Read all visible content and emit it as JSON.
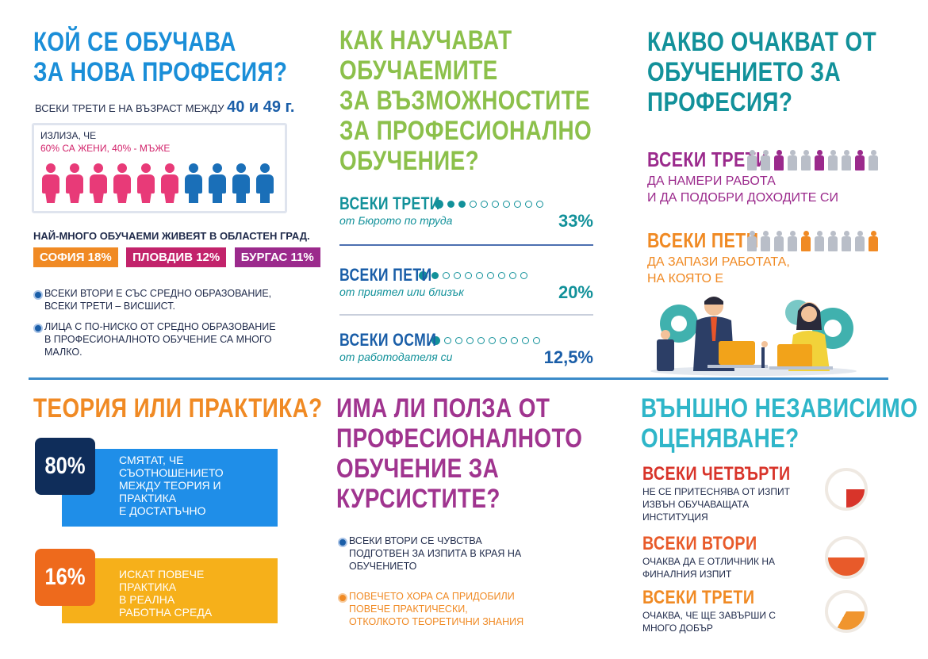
{
  "s1": {
    "title1": "КОЙ СЕ ОБУЧАВА",
    "title2": "ЗА НОВА ПРОФЕСИЯ?",
    "age_prefix": "ВСЕКИ ТРЕТИ Е НА ВЪЗРАСТ МЕЖДУ",
    "age_range": "40 и 49 г.",
    "box_intro": "ИЗЛИЗА, ЧЕ",
    "women": "60% СА ЖЕНИ,",
    "men": "40% - МЪЖЕ",
    "women_share": 0.6,
    "cities_title": "НАЙ-МНОГО ОБУЧАЕМИ ЖИВЕЯТ В ОБЛАСТЕН ГРАД.",
    "cities": [
      {
        "label": "СОФИЯ 18%",
        "color": "#f08a24"
      },
      {
        "label": "ПЛОВДИВ 12%",
        "color": "#c2236b"
      },
      {
        "label": "БУРГАС 11%",
        "color": "#9b2a8c"
      }
    ],
    "bullet1a": "ВСЕКИ ВТОРИ Е СЪС СРЕДНО ОБРАЗОВАНИЕ,",
    "bullet1b": "ВСЕКИ ТРЕТИ – ВИСШИСТ.",
    "bullet2a": "ЛИЦА С ПО-НИСКО ОТ СРЕДНО ОБРАЗОВАНИЕ",
    "bullet2b": "В ПРОФЕСИОНАЛНОТО ОБУЧЕНИЕ СА МНОГО",
    "bullet2c": "МАЛКО."
  },
  "s2": {
    "title": [
      "КАК НАУЧАВАТ",
      "ОБУЧАЕМИТЕ",
      "ЗА ВЪЗМОЖНОСТИТЕ",
      "ЗА ПРОФЕСИОНАЛНО",
      "ОБУЧЕНИЕ?"
    ],
    "rows": [
      {
        "head": "ВСЕКИ ТРЕТИ",
        "sub": "от Бюрото по труда",
        "pct": "33%",
        "filled": 3
      },
      {
        "head": "ВСЕКИ ПЕТИ",
        "sub": "от приятел или близък",
        "pct": "20%",
        "filled": 2
      },
      {
        "head": "ВСЕКИ ОСМИ",
        "sub": "от работодателя си",
        "pct": "12,5%",
        "filled": 1
      }
    ]
  },
  "s3": {
    "title": [
      "КАКВО ОЧАКВАТ ОТ",
      "ОБУЧЕНИЕТО ЗА",
      "ПРОФЕСИЯ?"
    ],
    "row1_head": "ВСЕКИ ТРЕТИ",
    "row1_line1": "ДА НАМЕРИ РАБОТА",
    "row1_line2": "И ДА ПОДОБРИ ДОХОДИТЕ СИ",
    "row2_head": "ВСЕКИ ПЕТИ",
    "row2_line1": "ДА ЗАПАЗИ РАБОТАТА,",
    "row2_line2": "НА КОЯТО Е"
  },
  "s4": {
    "title": "ТЕОРИЯ ИЛИ ПРАКТИКА?",
    "card1_pct": "80%",
    "card1_text": [
      "СМЯТАТ, ЧЕ",
      "СЪОТНОШЕНИЕТО",
      "МЕЖДУ ТЕОРИЯ И",
      "ПРАКТИКА",
      "Е ДОСТАТЪЧНО"
    ],
    "card2_pct": "16%",
    "card2_text": [
      "ИСКАТ ПОВЕЧЕ",
      "ПРАКТИКА",
      "В РЕАЛНА",
      "РАБОТНА СРЕДА"
    ]
  },
  "s5": {
    "title": [
      "ИМА ЛИ ПОЛЗА ОТ",
      "ПРОФЕСИОНАЛНОТО",
      "ОБУЧЕНИЕ ЗА",
      "КУРСИСТИТЕ?"
    ],
    "b1": [
      "ВСЕКИ ВТОРИ СЕ ЧУВСТВА",
      "ПОДГОТВЕН ЗА ИЗПИТА В КРАЯ НА",
      "ОБУЧЕНИЕТО"
    ],
    "b2": [
      "ПОВЕЧЕТО ХОРА СА ПРИДОБИЛИ",
      "ПОВЕЧЕ ПРАКТИЧЕСКИ,",
      "ОТКОЛКОТО ТЕОРЕТИЧНИ ЗНАНИЯ"
    ]
  },
  "s6": {
    "title": [
      "ВЪНШНО НЕЗАВИСИМО",
      "ОЦЕНЯВАНЕ?"
    ],
    "rows": [
      {
        "head": "ВСЕКИ ЧЕТВЪРТИ",
        "text": [
          "НЕ СЕ ПРИТЕСНЯВА ОТ ИЗПИТ",
          "ИЗВЪН ОБУЧАВАЩАТА",
          "ИНСТИТУЦИЯ"
        ],
        "head_color": "#d8342a",
        "fill_color": "#d8342a",
        "share": 0.25
      },
      {
        "head": "ВСЕКИ ВТОРИ",
        "text": [
          "ОЧАКВА ДА Е ОТЛИЧНИК НА",
          "ФИНАЛНИЯ ИЗПИТ"
        ],
        "head_color": "#e85a2a",
        "fill_color": "#e85a2a",
        "share": 0.5
      },
      {
        "head": "ВСЕКИ ТРЕТИ",
        "text": [
          "ОЧАКВА, ЧЕ ЩЕ ЗАВЪРШИ С",
          "МНОГО ДОБЪР"
        ],
        "head_color": "#f08a24",
        "fill_color": "#f0952e",
        "share": 0.33
      }
    ]
  }
}
